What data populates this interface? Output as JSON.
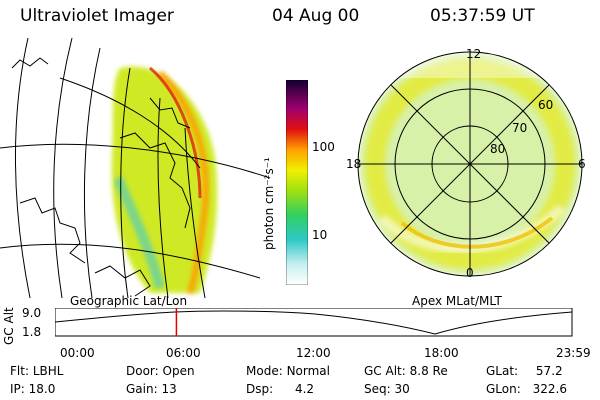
{
  "header": {
    "instrument": "Ultraviolet Imager",
    "date": "04 Aug 00",
    "time": "05:37:59 UT"
  },
  "colorbar": {
    "unit_label": "photon cm⁻²s⁻¹",
    "ticks": [
      "100",
      "10"
    ]
  },
  "left_map": {
    "label": "Geographic Lat/Lon"
  },
  "polar_map": {
    "label": "Apex MLat/MLT",
    "mlt_labels": {
      "top": "12",
      "left": "18",
      "right": "6",
      "bottom": "0"
    },
    "lat_labels": [
      "60",
      "70",
      "80"
    ]
  },
  "altitude_plot": {
    "axis_label": "GC Alt",
    "y_ticks": [
      "9.0",
      "1.8"
    ],
    "x_ticks": [
      "00:00",
      "06:00",
      "12:00",
      "18:00",
      "23:59"
    ],
    "marker_time": "05:37:59",
    "marker_color": "#e00000"
  },
  "info": {
    "flt": {
      "label": "Flt:",
      "value": "LBHL"
    },
    "ip": {
      "label": "IP:",
      "value": "18.0"
    },
    "door": {
      "label": "Door:",
      "value": "Open"
    },
    "gain": {
      "label": "Gain:",
      "value": "13"
    },
    "mode": {
      "label": "Mode:",
      "value": "Normal"
    },
    "dsp": {
      "label": "Dsp:",
      "value": "4.2"
    },
    "gcalt": {
      "label": "GC Alt:",
      "value": "8.8 Re"
    },
    "seq": {
      "label": "Seq:",
      "value": "30"
    },
    "glat": {
      "label": "GLat:",
      "value": "57.2"
    },
    "glon": {
      "label": "GLon:",
      "value": "322.6"
    }
  }
}
